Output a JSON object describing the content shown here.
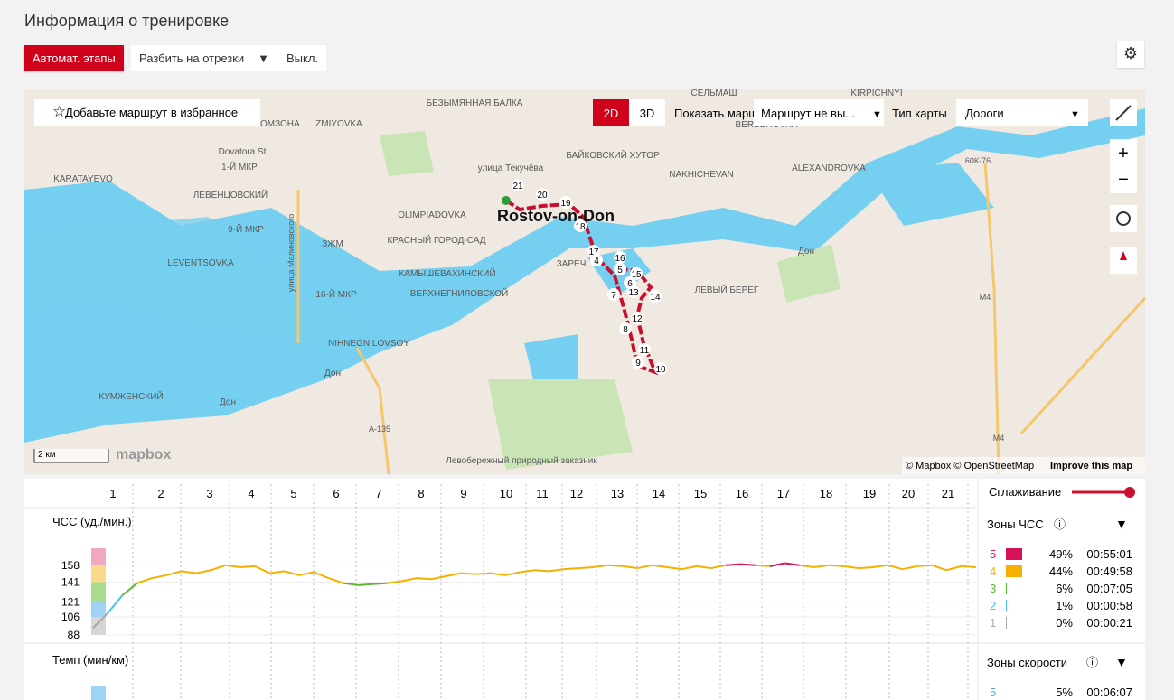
{
  "header": {
    "title": "Информация о тренировке"
  },
  "toolbar": {
    "auto_laps": "Автомат. этапы",
    "split": "Разбить на отрезки",
    "off": "Выкл."
  },
  "map": {
    "favorite": "Добавьте маршрут в избранное",
    "view_2d": "2D",
    "view_3d": "3D",
    "show_route": "Показать маршрут",
    "route_select": "Маршрут не вы...",
    "map_type_label": "Тип карты",
    "map_type": "Дороги",
    "scale": "2 км",
    "logo": "mapbox",
    "attribution": "© Mapbox © OpenStreetMap",
    "improve": "Improve this map",
    "places": [
      "БЕЗЫМЯННАЯ БАЛКА",
      "ZMIYOVKA",
      "Dovatora St",
      "1-Й МКР",
      "KARATAYEVO",
      "ЛЕВЕНЦОВСКИЙ",
      "9-Й МКР",
      "LEVENTSOVKA",
      "OLIMPIADOVKA",
      "КРАСНЫЙ ГОРОД-САД",
      "ЗЖМ",
      "КАМЫШЕВАХИНСКИЙ",
      "ВЕРХНЕГНИЛОВСКОЙ",
      "16-Й МКР",
      "NIHNEGNILOVSOY",
      "КУМЖЕНСКИЙ",
      "Rostov-on-Don",
      "улица Текучёва",
      "БАЙКОВСКИЙ ХУТОР",
      "NAKHICHEVAN",
      "ALEXANDROVKA",
      "BERBEROVKA",
      "KIRPICHNYI",
      "СЕЛЬМАШ",
      "ЗАРЕЧ",
      "ЛЕВЫЙ БЕРЕГ",
      "Дон",
      "Дон",
      "Дон",
      "60К-76",
      "M4",
      "M4",
      "A-135",
      "Левобережный природный заказник",
      "улица Малиновского",
      "ПРОМЗОНА"
    ],
    "lap_markers": [
      21,
      20,
      19,
      18,
      17,
      16,
      4,
      5,
      15,
      6,
      13,
      14,
      7,
      12,
      8,
      11,
      9,
      10
    ]
  },
  "laps": [
    1,
    2,
    3,
    4,
    5,
    6,
    7,
    8,
    9,
    10,
    11,
    12,
    13,
    14,
    15,
    16,
    17,
    18,
    19,
    20,
    21
  ],
  "smoothing": "Сглаживание",
  "hr_chart": {
    "title": "ЧСС (уд./мин.)",
    "ylim": [
      88,
      175
    ],
    "yticks": [
      88,
      106,
      121,
      141,
      158
    ],
    "values": [
      95,
      110,
      128,
      140,
      145,
      148,
      152,
      150,
      153,
      158,
      156,
      157,
      150,
      152,
      148,
      151,
      145,
      140,
      138,
      139,
      140,
      142,
      145,
      144,
      147,
      150,
      149,
      150,
      148,
      151,
      153,
      152,
      154,
      155,
      156,
      158,
      157,
      155,
      158,
      156,
      154,
      157,
      155,
      158,
      159,
      158,
      157,
      160,
      158,
      156,
      158,
      157,
      155,
      156,
      158,
      154,
      157,
      158,
      153,
      157,
      156
    ]
  },
  "hr_zones": {
    "title": "Зоны ЧСС",
    "rows": [
      {
        "zone": "5",
        "percent": "49%",
        "time": "00:55:01",
        "color": "#d6135a"
      },
      {
        "zone": "4",
        "percent": "44%",
        "time": "00:49:58",
        "color": "#f5b000"
      },
      {
        "zone": "3",
        "percent": "6%",
        "time": "00:07:05",
        "color": "#5db82e"
      },
      {
        "zone": "2",
        "percent": "1%",
        "time": "00:00:58",
        "color": "#47c2f0"
      },
      {
        "zone": "1",
        "percent": "0%",
        "time": "00:00:21",
        "color": "#aaaaaa"
      }
    ]
  },
  "pace_chart": {
    "title": "Темп (мин/км)"
  },
  "speed_zones": {
    "title": "Зоны скорости",
    "rows": [
      {
        "zone": "5",
        "percent": "5%",
        "time": "00:06:07"
      }
    ]
  }
}
